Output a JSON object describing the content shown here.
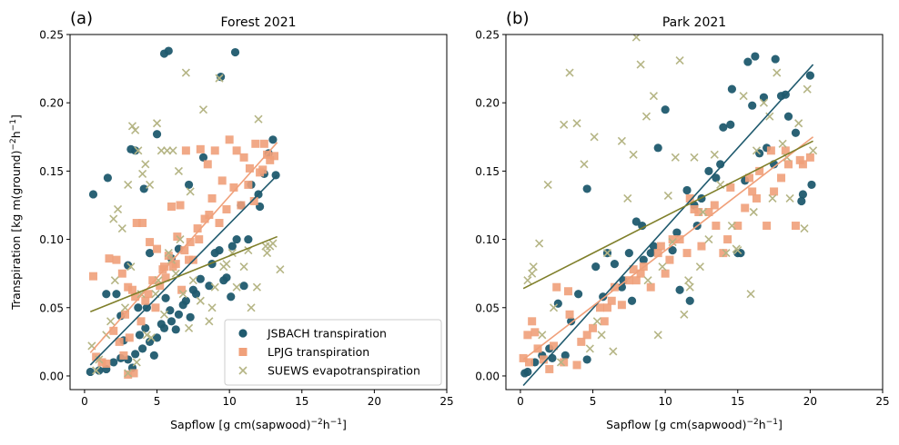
{
  "figure": {
    "legend": {
      "placement": "lower-right of panel (a)",
      "entries": [
        {
          "label": "JSBACH transpiration",
          "marker": "circle",
          "color": "#1f5a6e"
        },
        {
          "label": "LPJG transpiration",
          "marker": "square",
          "color": "#f0a07a"
        },
        {
          "label": "SUEWS evapotranspiration",
          "marker": "x",
          "color": "#b5b585"
        }
      ]
    },
    "colors": {
      "jsbach": "#1f5a6e",
      "lpjg": "#f0a07a",
      "suews_marker": "#b5b585",
      "suews_line": "#7f7f2a"
    }
  },
  "chart_data": [
    {
      "type": "scatter",
      "panel_label": "(a)",
      "title": "Forest 2021",
      "xlabel": "Sapflow [g cm(sapwood)^-2 h^-1]",
      "ylabel": "Transpiration [kg m(ground)^-2 h^-1]",
      "xlim": [
        -1,
        25
      ],
      "ylim": [
        -0.01,
        0.25
      ],
      "xticks": [
        0,
        5,
        10,
        15,
        20,
        25
      ],
      "yticks": [
        0.0,
        0.05,
        0.1,
        0.15,
        0.2,
        0.25
      ],
      "xtick_labels": [
        "0",
        "5",
        "10",
        "15",
        "20",
        "25"
      ],
      "ytick_labels": [
        "0.00",
        "0.05",
        "0.10",
        "0.15",
        "0.20",
        "0.25"
      ],
      "grid": false,
      "legend": "lower-right",
      "series": [
        {
          "name": "JSBACH transpiration",
          "marker": "circle",
          "x": [
            0.4,
            0.6,
            1.6,
            3.2,
            3.5,
            4.1,
            5.0,
            5.5,
            5.8,
            9.4,
            10.4,
            1.5,
            4.5,
            3.0,
            4.3,
            2.5,
            3.8,
            5.6,
            6.0,
            6.5,
            7.2,
            8.2,
            9.3,
            9.6,
            10.1,
            10.8,
            11.5,
            12.0,
            12.4,
            12.7,
            13.0,
            13.2,
            12.1,
            11.3,
            10.2,
            9.0,
            8.0,
            7.5,
            7.0,
            6.5,
            6.0,
            5.5,
            5.0,
            4.5,
            4.0,
            3.5,
            3.0,
            2.5,
            2.0,
            1.5,
            1.0,
            2.7,
            3.3,
            4.8,
            5.3,
            6.3,
            7.7,
            8.6,
            9.8,
            10.5,
            11.0,
            2.2,
            3.7,
            4.2,
            5.9,
            6.8,
            7.3,
            8.8
          ],
          "y": [
            0.003,
            0.133,
            0.145,
            0.166,
            0.165,
            0.137,
            0.177,
            0.236,
            0.238,
            0.219,
            0.237,
            0.06,
            0.09,
            0.081,
            0.05,
            0.044,
            0.03,
            0.057,
            0.086,
            0.093,
            0.14,
            0.16,
            0.092,
            0.07,
            0.058,
            0.125,
            0.14,
            0.133,
            0.148,
            0.163,
            0.173,
            0.147,
            0.124,
            0.1,
            0.095,
            0.09,
            0.071,
            0.063,
            0.055,
            0.045,
            0.04,
            0.035,
            0.028,
            0.025,
            0.02,
            0.016,
            0.012,
            0.013,
            0.01,
            0.005,
            0.004,
            0.026,
            0.006,
            0.015,
            0.038,
            0.034,
            0.06,
            0.066,
            0.072,
            0.1,
            0.066,
            0.06,
            0.05,
            0.035,
            0.048,
            0.052,
            0.043,
            0.082
          ]
        },
        {
          "name": "LPJG transpiration",
          "marker": "square",
          "x": [
            0.6,
            1.7,
            2.2,
            2.6,
            3.0,
            3.3,
            3.6,
            4.0,
            4.5,
            5.0,
            5.5,
            6.0,
            6.6,
            7.0,
            7.5,
            8.0,
            8.5,
            9.0,
            9.5,
            10.0,
            10.5,
            11.0,
            11.4,
            11.8,
            12.1,
            12.4,
            12.8,
            13.1,
            0.8,
            1.2,
            2.0,
            2.8,
            3.5,
            4.2,
            4.7,
            5.2,
            5.8,
            6.3,
            6.9,
            7.3,
            7.8,
            8.3,
            8.8,
            9.3,
            9.8,
            10.3,
            10.8,
            11.3,
            11.7,
            12.3,
            12.6,
            1.5,
            2.4,
            3.1,
            3.9,
            4.9,
            5.6,
            6.1,
            6.7,
            7.2,
            7.9,
            3.0,
            3.4,
            2.7,
            4.4,
            5.4,
            6.4,
            8.6
          ],
          "y": [
            0.073,
            0.086,
            0.085,
            0.075,
            0.065,
            0.063,
            0.112,
            0.112,
            0.098,
            0.093,
            0.08,
            0.124,
            0.125,
            0.165,
            0.085,
            0.166,
            0.155,
            0.165,
            0.143,
            0.173,
            0.165,
            0.16,
            0.152,
            0.17,
            0.149,
            0.17,
            0.158,
            0.161,
            0.014,
            0.01,
            0.033,
            0.045,
            0.058,
            0.055,
            0.07,
            0.066,
            0.088,
            0.082,
            0.092,
            0.098,
            0.108,
            0.115,
            0.13,
            0.112,
            0.122,
            0.138,
            0.125,
            0.14,
            0.128,
            0.151,
            0.162,
            0.009,
            0.025,
            0.028,
            0.04,
            0.05,
            0.072,
            0.08,
            0.063,
            0.085,
            0.1,
            0.001,
            0.002,
            0.015,
            0.06,
            0.078,
            0.102,
            0.118
          ]
        },
        {
          "name": "SUEWS evapotranspiration",
          "marker": "x",
          "x": [
            0.5,
            1.0,
            1.5,
            2.3,
            2.6,
            3.0,
            3.3,
            3.5,
            3.7,
            4.0,
            4.2,
            4.5,
            5.0,
            5.3,
            5.7,
            6.1,
            6.5,
            7.0,
            7.3,
            8.2,
            9.3,
            10.2,
            11.0,
            12.0,
            12.5,
            13.0,
            13.5,
            0.8,
            1.8,
            2.1,
            2.8,
            3.2,
            3.9,
            4.6,
            5.1,
            5.5,
            6.3,
            6.8,
            7.5,
            8.0,
            8.6,
            9.0,
            9.6,
            10.5,
            11.3,
            11.9,
            12.6,
            2.0,
            3.0,
            4.3,
            5.8,
            7.2,
            8.8,
            9.8,
            11.5,
            12.8,
            3.6,
            4.9,
            6.0,
            6.6
          ],
          "y": [
            0.022,
            0.012,
            0.03,
            0.122,
            0.108,
            0.14,
            0.183,
            0.18,
            0.165,
            0.148,
            0.155,
            0.14,
            0.185,
            0.165,
            0.165,
            0.165,
            0.15,
            0.222,
            0.135,
            0.195,
            0.218,
            0.09,
            0.08,
            0.188,
            0.095,
            0.097,
            0.078,
            0.004,
            0.04,
            0.07,
            0.05,
            0.08,
            0.06,
            0.028,
            0.07,
            0.045,
            0.075,
            0.06,
            0.07,
            0.055,
            0.04,
            0.065,
            0.08,
            0.065,
            0.092,
            0.065,
            0.09,
            0.115,
            0.002,
            0.03,
            0.09,
            0.035,
            0.05,
            0.082,
            0.05,
            0.095,
            0.01,
            0.06,
            0.085,
            0.1
          ]
        }
      ],
      "fit_lines": [
        {
          "series": "JSBACH transpiration",
          "x": [
            0.4,
            13.3
          ],
          "y": [
            0.008,
            0.147
          ]
        },
        {
          "series": "LPJG transpiration",
          "x": [
            0.4,
            13.3
          ],
          "y": [
            0.017,
            0.171
          ]
        },
        {
          "series": "SUEWS evapotranspiration",
          "x": [
            0.4,
            13.3
          ],
          "y": [
            0.047,
            0.102
          ]
        }
      ]
    },
    {
      "type": "scatter",
      "panel_label": "(b)",
      "title": "Park 2021",
      "xlabel": "Sapflow [g cm(sapwood)^-2 h^-1]",
      "ylabel": "",
      "xlim": [
        -1,
        25
      ],
      "ylim": [
        -0.01,
        0.25
      ],
      "xticks": [
        0,
        5,
        10,
        15,
        20,
        25
      ],
      "yticks": [
        0.0,
        0.05,
        0.1,
        0.15,
        0.2,
        0.25
      ],
      "xtick_labels": [
        "0",
        "5",
        "10",
        "15",
        "20",
        "25"
      ],
      "ytick_labels": [
        "0.00",
        "0.05",
        "0.10",
        "0.15",
        "0.20",
        "0.25"
      ],
      "grid": false,
      "series": [
        {
          "name": "JSBACH transpiration",
          "marker": "circle",
          "x": [
            0.3,
            0.5,
            1.0,
            1.5,
            2.0,
            2.2,
            3.1,
            4.6,
            4.6,
            5.2,
            6.0,
            6.5,
            7.0,
            7.5,
            8.0,
            8.5,
            9.0,
            9.5,
            10.0,
            10.5,
            11.0,
            11.5,
            12.0,
            12.5,
            13.0,
            13.5,
            14.0,
            14.5,
            15.0,
            15.5,
            16.0,
            16.5,
            17.0,
            17.5,
            18.0,
            18.5,
            19.0,
            19.5,
            20.0,
            4.0,
            5.7,
            7.7,
            8.4,
            9.2,
            10.8,
            11.7,
            13.8,
            15.7,
            16.2,
            17.6,
            19.4,
            20.1,
            12.2,
            14.6,
            15.2,
            16.8,
            18.3,
            2.6,
            3.5,
            7.1
          ],
          "y": [
            0.002,
            0.003,
            0.01,
            0.015,
            0.02,
            0.013,
            0.015,
            0.012,
            0.137,
            0.08,
            0.09,
            0.082,
            0.065,
            0.09,
            0.113,
            0.085,
            0.09,
            0.167,
            0.195,
            0.092,
            0.063,
            0.136,
            0.125,
            0.13,
            0.15,
            0.145,
            0.182,
            0.184,
            0.09,
            0.143,
            0.198,
            0.163,
            0.167,
            0.155,
            0.205,
            0.19,
            0.178,
            0.133,
            0.22,
            0.06,
            0.058,
            0.055,
            0.11,
            0.095,
            0.105,
            0.055,
            0.155,
            0.23,
            0.234,
            0.232,
            0.128,
            0.14,
            0.11,
            0.21,
            0.09,
            0.204,
            0.206,
            0.053,
            0.04,
            0.07
          ],
          "note": "approximate"
        },
        {
          "name": "LPJG transpiration",
          "marker": "square",
          "x": [
            0.2,
            0.5,
            0.8,
            1.2,
            1.6,
            2.0,
            2.5,
            3.0,
            3.4,
            3.9,
            4.6,
            5.0,
            5.5,
            6.0,
            6.5,
            7.0,
            7.5,
            8.0,
            8.5,
            9.0,
            9.5,
            10.0,
            10.5,
            11.0,
            11.5,
            12.0,
            12.5,
            13.0,
            13.5,
            14.0,
            14.5,
            15.0,
            15.5,
            16.0,
            16.5,
            17.0,
            17.5,
            18.0,
            18.5,
            19.0,
            19.5,
            20.0,
            1.0,
            3.3,
            5.8,
            7.8,
            9.7,
            11.7,
            13.4,
            15.8,
            17.3,
            19.3,
            0.6,
            2.3,
            4.2,
            6.3,
            8.3,
            10.3,
            12.3,
            14.3,
            16.3,
            18.3
          ],
          "y": [
            0.013,
            0.03,
            0.04,
            0.02,
            0.012,
            0.005,
            0.065,
            0.01,
            0.045,
            0.008,
            0.03,
            0.035,
            0.05,
            0.05,
            0.065,
            0.052,
            0.07,
            0.07,
            0.08,
            0.065,
            0.09,
            0.075,
            0.1,
            0.1,
            0.09,
            0.122,
            0.095,
            0.12,
            0.11,
            0.09,
            0.138,
            0.11,
            0.123,
            0.135,
            0.15,
            0.11,
            0.135,
            0.145,
            0.155,
            0.11,
            0.155,
            0.16,
            0.032,
            0.062,
            0.04,
            0.078,
            0.095,
            0.13,
            0.125,
            0.145,
            0.165,
            0.158,
            0.01,
            0.022,
            0.025,
            0.055,
            0.075,
            0.085,
            0.12,
            0.1,
            0.13,
            0.165
          ],
          "note": "approximate"
        },
        {
          "name": "SUEWS evapotranspiration",
          "marker": "x",
          "x": [
            0.5,
            0.9,
            1.5,
            1.9,
            2.3,
            3.4,
            3.9,
            4.4,
            5.1,
            5.6,
            6.4,
            7.0,
            7.4,
            7.8,
            8.0,
            8.3,
            8.7,
            9.2,
            9.8,
            10.2,
            10.7,
            11.0,
            11.3,
            11.7,
            12.0,
            12.6,
            13.0,
            13.4,
            13.8,
            14.2,
            14.6,
            15.0,
            15.4,
            15.9,
            16.3,
            16.8,
            17.2,
            17.7,
            18.1,
            18.6,
            19.2,
            19.8,
            20.2,
            0.8,
            2.8,
            4.8,
            6.0,
            9.5,
            10.5,
            12.4,
            14.9,
            16.1,
            17.4,
            18.4,
            19.6,
            1.3,
            3.0,
            5.3,
            8.8,
            11.6
          ],
          "y": [
            0.07,
            0.08,
            0.03,
            0.14,
            0.05,
            0.222,
            0.185,
            0.155,
            0.175,
            0.03,
            0.018,
            0.172,
            0.13,
            0.162,
            0.248,
            0.228,
            0.19,
            0.205,
            0.08,
            0.132,
            0.16,
            0.231,
            0.045,
            0.065,
            0.16,
            0.12,
            0.1,
            0.162,
            0.14,
            0.09,
            0.11,
            0.092,
            0.205,
            0.06,
            0.165,
            0.2,
            0.19,
            0.222,
            0.17,
            0.13,
            0.185,
            0.21,
            0.165,
            0.075,
            0.01,
            0.02,
            0.09,
            0.03,
            0.098,
            0.08,
            0.093,
            0.12,
            0.13,
            0.16,
            0.108,
            0.097,
            0.184,
            0.04,
            0.07,
            0.07
          ],
          "note": "approximate"
        }
      ],
      "fit_lines": [
        {
          "series": "JSBACH transpiration",
          "x": [
            0.2,
            20.2
          ],
          "y": [
            -0.007,
            0.228
          ]
        },
        {
          "series": "LPJG transpiration",
          "x": [
            0.2,
            20.2
          ],
          "y": [
            0.012,
            0.175
          ]
        },
        {
          "series": "SUEWS evapotranspiration",
          "x": [
            0.2,
            20.2
          ],
          "y": [
            0.064,
            0.172
          ]
        }
      ]
    }
  ]
}
